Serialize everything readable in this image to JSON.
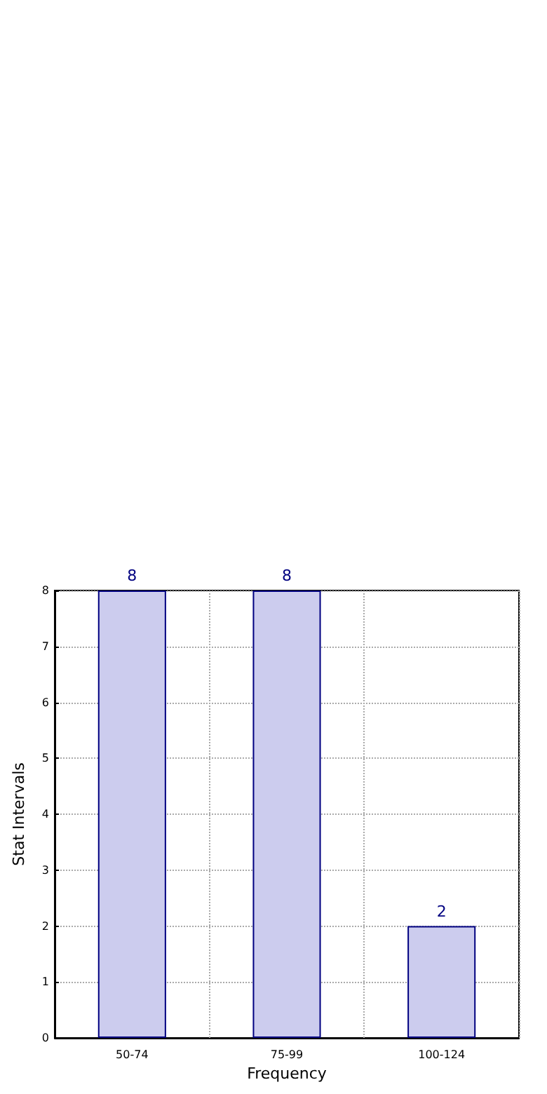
{
  "chart_data": {
    "type": "bar",
    "xlabel": "Frequency",
    "ylabel": "Stat Intervals",
    "categories": [
      "50-74",
      "75-99",
      "100-124"
    ],
    "values": [
      8,
      8,
      2
    ],
    "color": "#ccccee",
    "ylim": [
      0,
      8
    ],
    "yticks": [
      0,
      1,
      2,
      3,
      4,
      5,
      6,
      7,
      8
    ],
    "grid": true,
    "data_labels": true
  }
}
